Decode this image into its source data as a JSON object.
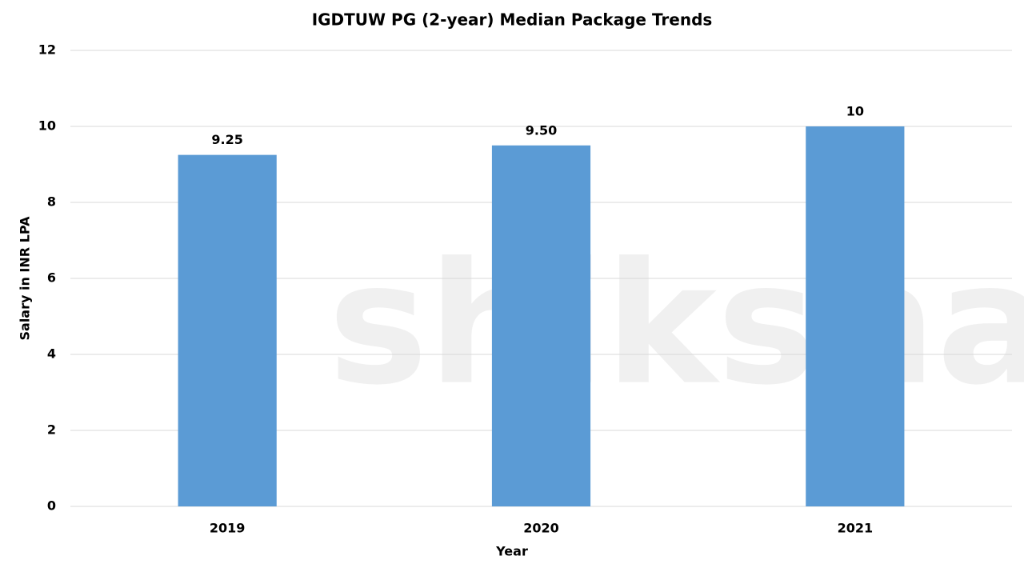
{
  "chart_data": {
    "type": "bar",
    "title": "IGDTUW PG (2-year) Median Package Trends",
    "x_label": "Year",
    "y_label": "Salary in INR LPA",
    "categories": [
      "2019",
      "2020",
      "2021"
    ],
    "values": [
      9.25,
      9.5,
      10
    ],
    "value_labels": [
      "9.25",
      "9.50",
      "10"
    ],
    "color": "#5b9bd5",
    "ylim": [
      0,
      12
    ],
    "yticks": [
      0,
      2,
      4,
      6,
      8,
      10,
      12
    ],
    "grid": true,
    "watermark": "shiksha"
  }
}
